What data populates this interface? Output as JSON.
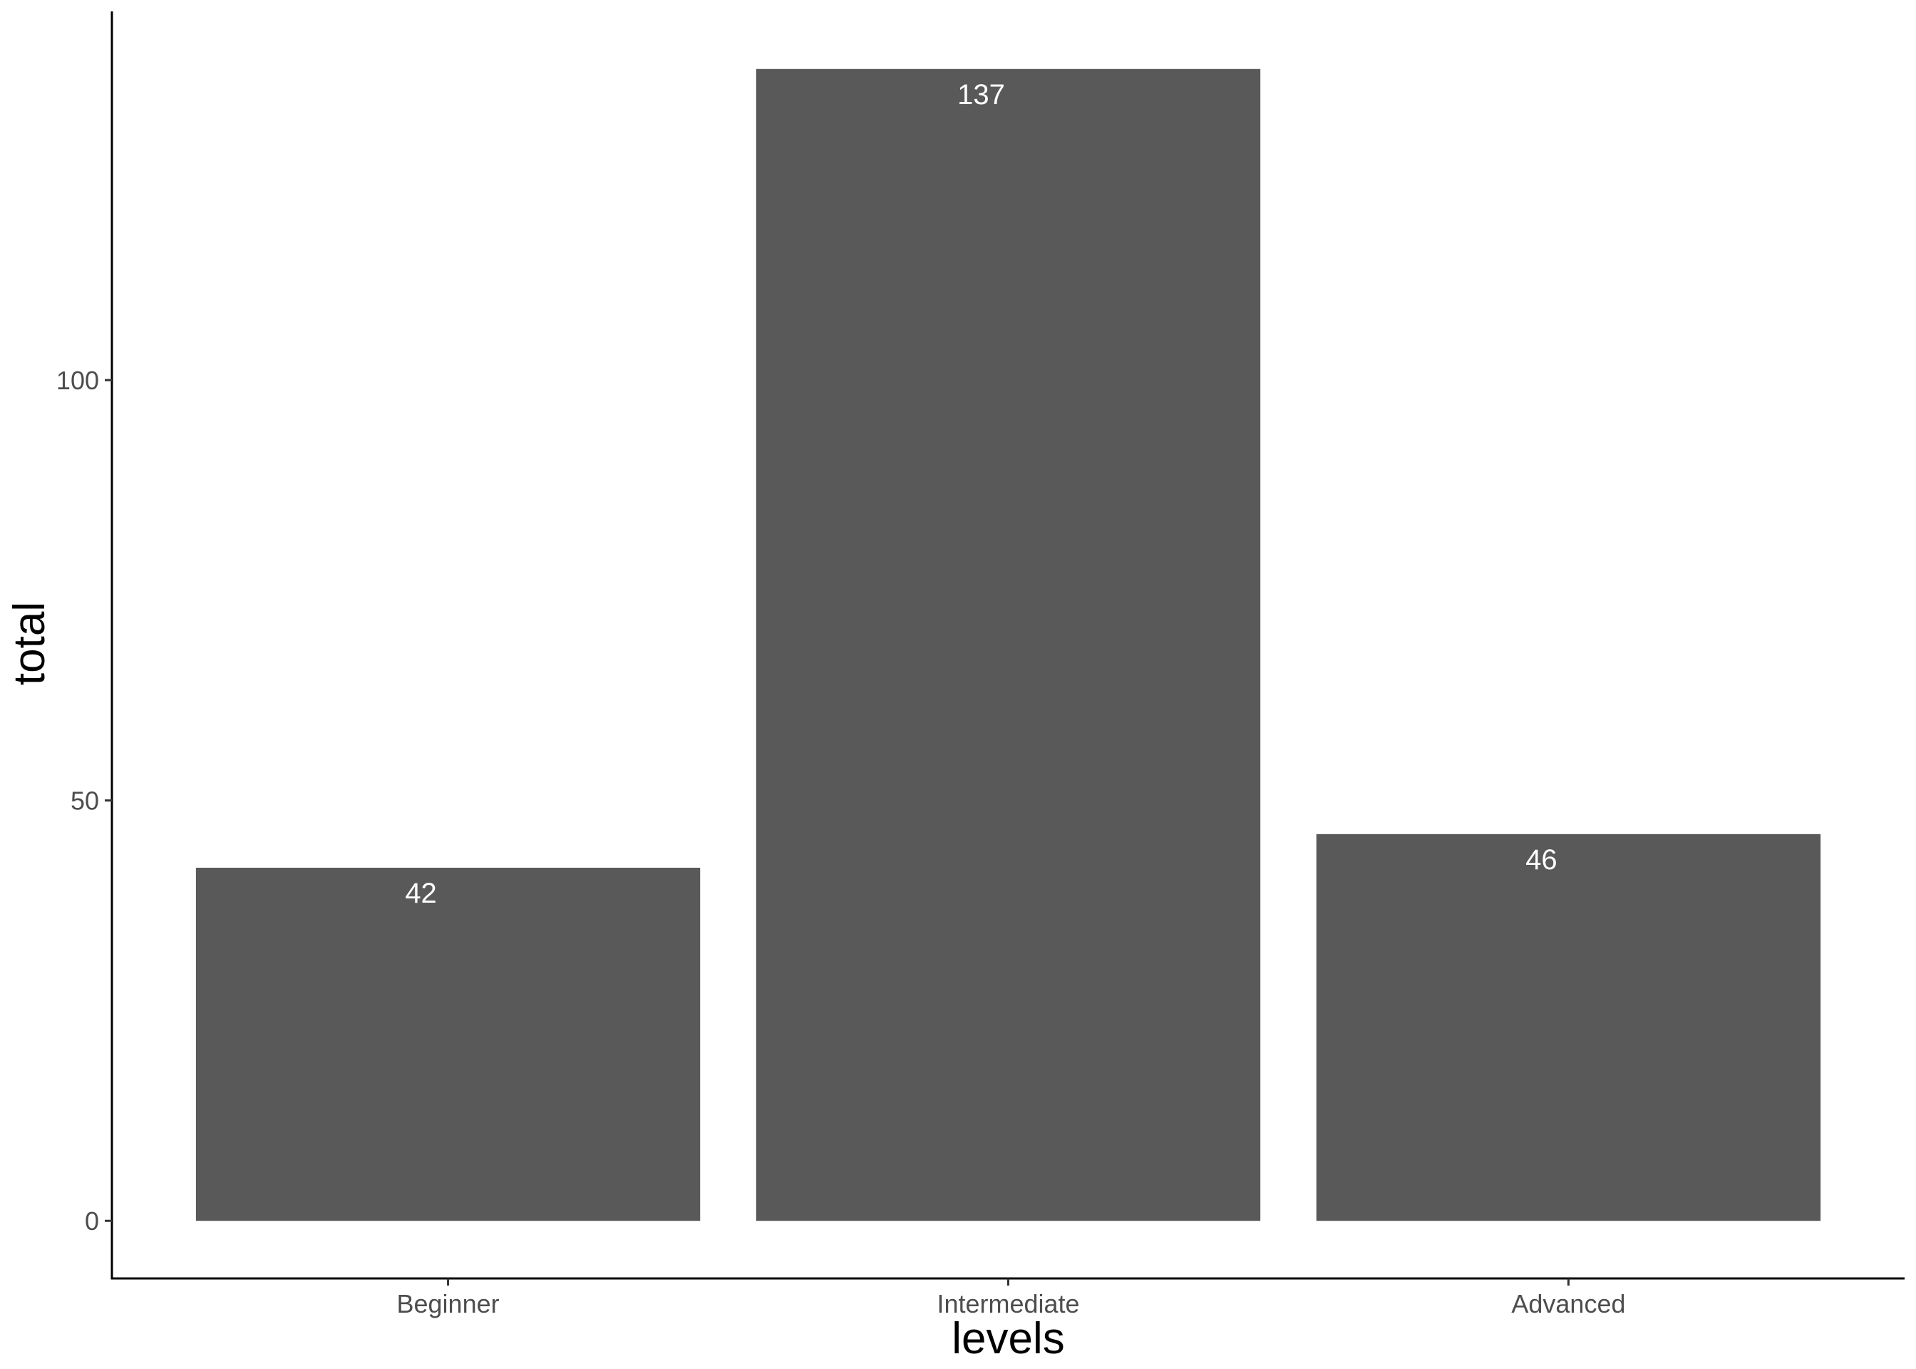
{
  "chart_data": {
    "type": "bar",
    "categories": [
      "Beginner",
      "Intermediate",
      "Advanced"
    ],
    "values": [
      42,
      137,
      46
    ],
    "data_labels": [
      "42",
      "137",
      "46"
    ],
    "xlabel": "levels",
    "ylabel": "total",
    "y_ticks": [
      0,
      50,
      100
    ],
    "y_tick_labels": [
      "0",
      "50",
      "100"
    ],
    "ylim": [
      -6.85,
      143.85
    ],
    "grid": false,
    "legend": "none",
    "colors": {
      "bar": "#595959",
      "label": "#ffffff",
      "axis": "#000000",
      "tick_text": "#4d4d4d"
    }
  }
}
